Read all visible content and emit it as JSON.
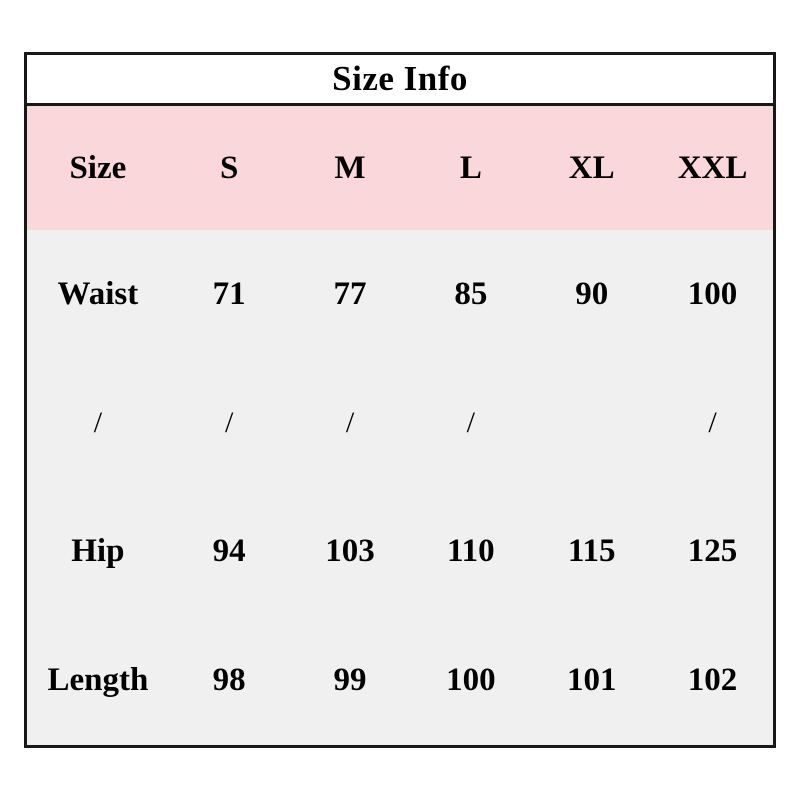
{
  "table": {
    "title": "Size Info",
    "columns": [
      "Size",
      "S",
      "M",
      "L",
      "XL",
      "XXL"
    ],
    "rows": [
      {
        "label": "Waist",
        "values": [
          "71",
          "77",
          "85",
          "90",
          "100"
        ]
      },
      {
        "label": "/",
        "values": [
          "/",
          "/",
          "/",
          "",
          "/"
        ]
      },
      {
        "label": "Hip",
        "values": [
          "94",
          "103",
          "110",
          "115",
          "125"
        ]
      },
      {
        "label": "Length",
        "values": [
          "98",
          "99",
          "100",
          "101",
          "102"
        ]
      }
    ],
    "colors": {
      "header_bg": "#f9d7da",
      "body_bg": "#f0f0f1",
      "title_bg": "#ffffff",
      "border": "#181818",
      "text": "#000000"
    }
  },
  "chart_data": {
    "type": "table",
    "title": "Size Info",
    "columns": [
      "Size",
      "S",
      "M",
      "L",
      "XL",
      "XXL"
    ],
    "rows": [
      [
        "Waist",
        "71",
        "77",
        "85",
        "90",
        "100"
      ],
      [
        "/",
        "/",
        "/",
        "/",
        "",
        "/"
      ],
      [
        "Hip",
        "94",
        "103",
        "110",
        "115",
        "125"
      ],
      [
        "Length",
        "98",
        "99",
        "100",
        "101",
        "102"
      ]
    ]
  }
}
